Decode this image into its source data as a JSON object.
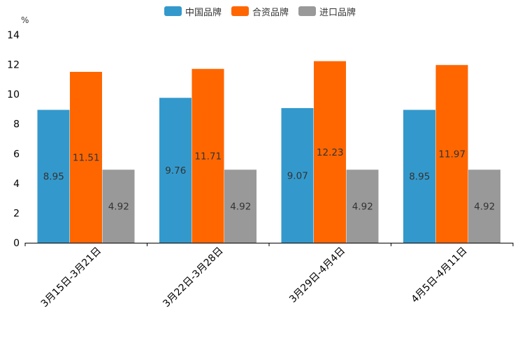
{
  "chart_data": {
    "type": "bar",
    "title": "",
    "unit": "%",
    "xlabel": "",
    "ylabel": "%",
    "ylim": [
      0,
      14
    ],
    "yticks": [
      "0",
      "2",
      "4",
      "6",
      "8",
      "10",
      "12",
      "14"
    ],
    "categories": [
      "3月15日-3月21日",
      "3月22日-3月28日",
      "3月29日-4月4日",
      "4月5日-4月11日"
    ],
    "series": [
      {
        "name": "中国品牌",
        "color": "#3399cc",
        "values": [
          8.95,
          9.76,
          9.07,
          8.95
        ],
        "labels": [
          "8.95",
          "9.76",
          "9.07",
          "8.95"
        ]
      },
      {
        "name": "合资品牌",
        "color": "#ff6600",
        "values": [
          11.51,
          11.71,
          12.23,
          11.97
        ],
        "labels": [
          "11.51",
          "11.71",
          "12.23",
          "11.97"
        ]
      },
      {
        "name": "进口品牌",
        "color": "#999999",
        "values": [
          4.92,
          4.92,
          4.92,
          4.92
        ],
        "labels": [
          "4.92",
          "4.92",
          "4.92",
          "4.92"
        ]
      }
    ],
    "legend_position": "top",
    "grid": false
  }
}
